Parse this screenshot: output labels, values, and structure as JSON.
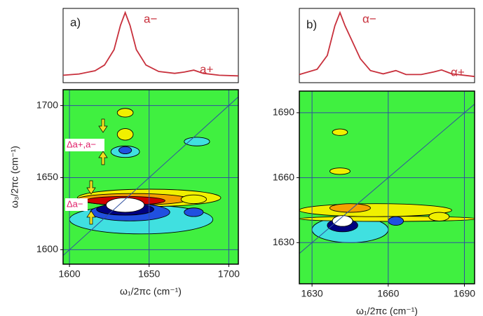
{
  "chart_data": [
    {
      "type": "contour",
      "panel_label": "a)",
      "x_label": "ω₁/2πc (cm⁻¹)",
      "y_label": "ω₃/2πc (cm⁻¹)",
      "xlim": [
        1596,
        1706
      ],
      "xticks": [
        1600,
        1650,
        1700
      ],
      "ylim": [
        1590,
        1711
      ],
      "yticks": [
        1600,
        1650,
        1700
      ],
      "grid": true,
      "peak_labels": [
        "a−",
        "a+"
      ],
      "annotations": [
        "Δa+,a−",
        "Δa−"
      ],
      "spectrum": {
        "color": "#c8303c",
        "x": [
          1596,
          1606,
          1616,
          1622,
          1628,
          1632,
          1635,
          1638,
          1642,
          1648,
          1656,
          1666,
          1672,
          1678,
          1684,
          1694,
          1706
        ],
        "values": [
          0.05,
          0.07,
          0.12,
          0.21,
          0.45,
          0.83,
          1.03,
          0.83,
          0.45,
          0.21,
          0.11,
          0.08,
          0.1,
          0.13,
          0.08,
          0.05,
          0.04
        ]
      },
      "contours": [
        {
          "color": "#40e0e0",
          "cx": 1645,
          "cy": 1621,
          "rx": 45,
          "ry": 10
        },
        {
          "color": "#f0f000",
          "cx": 1650,
          "cy": 1636,
          "rx": 45,
          "ry": 6
        },
        {
          "color": "#f5a000",
          "cx": 1640,
          "cy": 1635,
          "rx": 35,
          "ry": 4
        },
        {
          "color": "#d00000",
          "cx": 1635,
          "cy": 1634,
          "rx": 25,
          "ry": 3
        },
        {
          "color": "#2050e0",
          "cx": 1638,
          "cy": 1626,
          "rx": 25,
          "ry": 6
        },
        {
          "color": "#000080",
          "cx": 1635,
          "cy": 1628,
          "rx": 18,
          "ry": 4
        },
        {
          "color": "#ffffff",
          "cx": 1635,
          "cy": 1631,
          "rx": 12,
          "ry": 5
        },
        {
          "color": "#f0f000",
          "cx": 1678,
          "cy": 1635,
          "rx": 8,
          "ry": 3
        },
        {
          "color": "#2050e0",
          "cx": 1678,
          "cy": 1626,
          "rx": 6,
          "ry": 3
        },
        {
          "color": "#40e0e0",
          "cx": 1635,
          "cy": 1668,
          "rx": 9,
          "ry": 4
        },
        {
          "color": "#2050e0",
          "cx": 1635,
          "cy": 1669,
          "rx": 4,
          "ry": 2.5
        },
        {
          "color": "#f0f000",
          "cx": 1635,
          "cy": 1680,
          "rx": 5,
          "ry": 4
        },
        {
          "color": "#f0f000",
          "cx": 1635,
          "cy": 1695,
          "rx": 5,
          "ry": 3
        },
        {
          "color": "#40e0e0",
          "cx": 1680,
          "cy": 1675,
          "rx": 8,
          "ry": 3
        }
      ]
    },
    {
      "type": "contour",
      "panel_label": "b)",
      "x_label": "ω₁/2πc (cm⁻¹)",
      "xlim": [
        1625,
        1694
      ],
      "xticks": [
        1630,
        1660,
        1690
      ],
      "ylim": [
        1611,
        1700
      ],
      "yticks": [
        1630,
        1660,
        1690
      ],
      "grid": true,
      "peak_labels": [
        "α−",
        "α+"
      ],
      "spectrum": {
        "color": "#c8303c",
        "x": [
          1625,
          1632,
          1636,
          1639,
          1641,
          1643,
          1646,
          1649,
          1653,
          1658,
          1663,
          1667,
          1673,
          1678,
          1681,
          1685,
          1694
        ],
        "values": [
          0.06,
          0.14,
          0.35,
          0.8,
          1.0,
          0.8,
          0.55,
          0.3,
          0.12,
          0.07,
          0.12,
          0.06,
          0.06,
          0.1,
          0.13,
          0.07,
          0.03
        ]
      },
      "contours": [
        {
          "color": "#40e0e0",
          "cx": 1645,
          "cy": 1636,
          "rx": 15,
          "ry": 6
        },
        {
          "color": "#f0f000",
          "cx": 1660,
          "cy": 1641,
          "rx": 35,
          "ry": 1.2
        },
        {
          "color": "#f0f000",
          "cx": 1655,
          "cy": 1645,
          "rx": 30,
          "ry": 3
        },
        {
          "color": "#f5a000",
          "cx": 1645,
          "cy": 1646,
          "rx": 8,
          "ry": 2
        },
        {
          "color": "#000080",
          "cx": 1642,
          "cy": 1638,
          "rx": 6,
          "ry": 3
        },
        {
          "color": "#ffffff",
          "cx": 1642,
          "cy": 1640,
          "rx": 4,
          "ry": 2.5
        },
        {
          "color": "#f0f000",
          "cx": 1641,
          "cy": 1663,
          "rx": 4,
          "ry": 1.5
        },
        {
          "color": "#f0f000",
          "cx": 1641,
          "cy": 1681,
          "rx": 3,
          "ry": 1.5
        },
        {
          "color": "#2050e0",
          "cx": 1663,
          "cy": 1640,
          "rx": 3,
          "ry": 2
        },
        {
          "color": "#f0f000",
          "cx": 1680,
          "cy": 1642,
          "rx": 4,
          "ry": 2
        }
      ]
    }
  ]
}
